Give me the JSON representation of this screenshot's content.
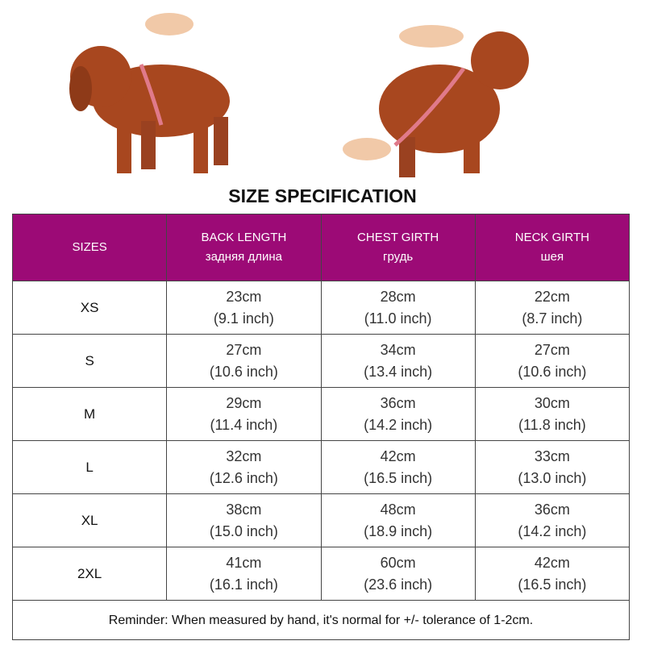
{
  "title": "SIZE SPECIFICATION",
  "colors": {
    "header_bg": "#9c0a76",
    "header_text": "#ffffff",
    "dog": "#a8471f"
  },
  "images": [
    "dog-measure-neck-photo",
    "dog-measure-back-photo"
  ],
  "table": {
    "headers": [
      {
        "en": "SIZES",
        "ru": ""
      },
      {
        "en": "BACK LENGTH",
        "ru": "задняя длина"
      },
      {
        "en": "CHEST GIRTH",
        "ru": "грудь"
      },
      {
        "en": "NECK GIRTH",
        "ru": "шея"
      }
    ],
    "rows": [
      {
        "size": "XS",
        "cells": [
          [
            "23cm",
            "(9.1 inch)"
          ],
          [
            "28cm",
            "(11.0 inch)"
          ],
          [
            "22cm",
            "(8.7 inch)"
          ]
        ]
      },
      {
        "size": "S",
        "cells": [
          [
            "27cm",
            "(10.6 inch)"
          ],
          [
            "34cm",
            "(13.4 inch)"
          ],
          [
            "27cm",
            "(10.6 inch)"
          ]
        ]
      },
      {
        "size": "M",
        "cells": [
          [
            "29cm",
            "(11.4 inch)"
          ],
          [
            "36cm",
            "(14.2 inch)"
          ],
          [
            "30cm",
            "(11.8 inch)"
          ]
        ]
      },
      {
        "size": "L",
        "cells": [
          [
            "32cm",
            "(12.6 inch)"
          ],
          [
            "42cm",
            "(16.5 inch)"
          ],
          [
            "33cm",
            "(13.0 inch)"
          ]
        ]
      },
      {
        "size": "XL",
        "cells": [
          [
            "38cm",
            "(15.0 inch)"
          ],
          [
            "48cm",
            "(18.9 inch)"
          ],
          [
            "36cm",
            "(14.2 inch)"
          ]
        ]
      },
      {
        "size": "2XL",
        "cells": [
          [
            "41cm",
            "(16.1 inch)"
          ],
          [
            "60cm",
            "(23.6 inch)"
          ],
          [
            "42cm",
            "(16.5 inch)"
          ]
        ]
      }
    ],
    "reminder": "Reminder: When measured by hand, it's normal for +/- tolerance of 1-2cm."
  }
}
